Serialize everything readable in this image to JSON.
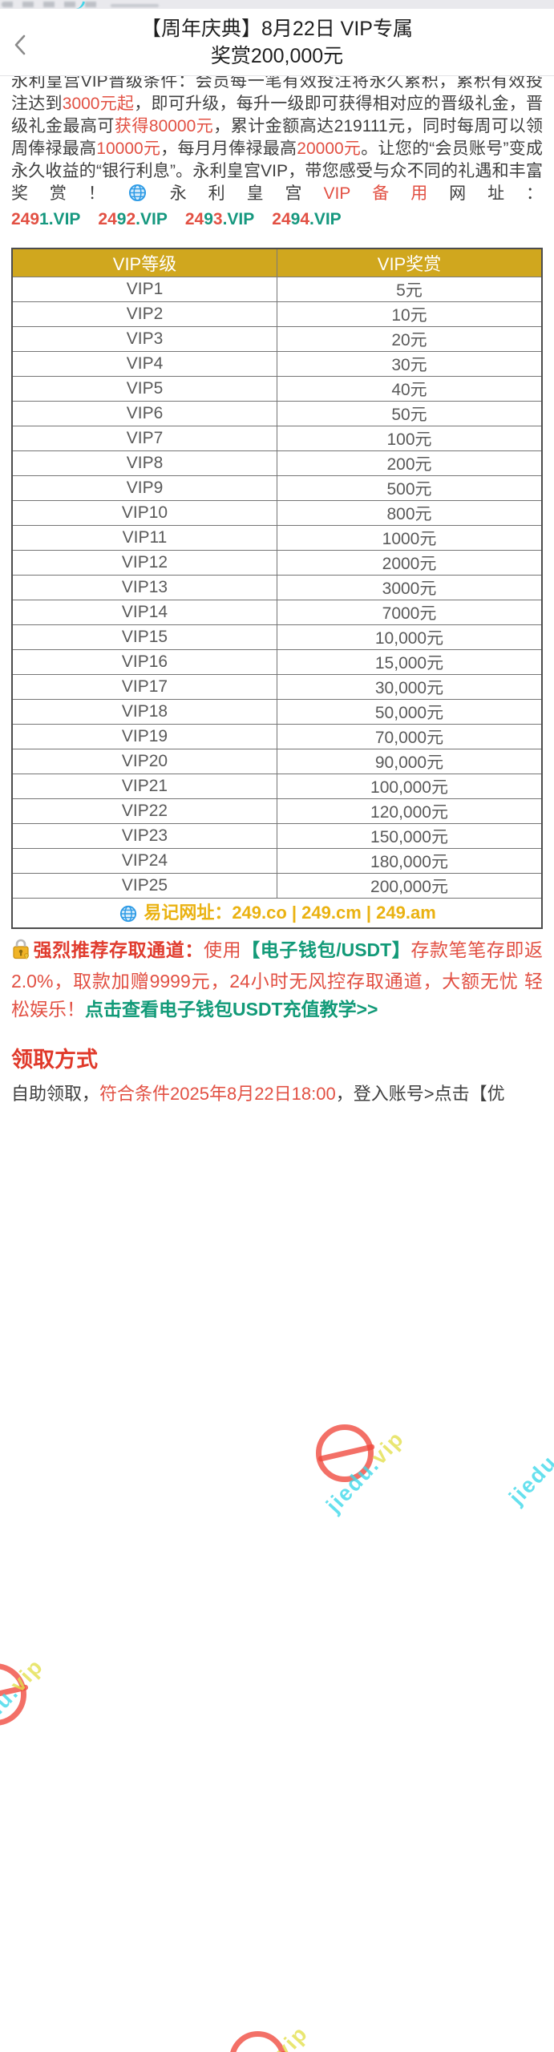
{
  "header": {
    "title_line1": "【周年庆典】8月22日 VIP专属",
    "title_line2": "奖赏200,000元"
  },
  "intro": {
    "segments": [
      {
        "t": "永利皇宫VIP晋级条件：会员每一笔有效投注将永久累积，累积有效投注达到",
        "c": "dark"
      },
      {
        "t": "3000元起",
        "c": "red"
      },
      {
        "t": "，即可升级，每升一级即可获得相对应的晋级礼金，晋级礼金最高可",
        "c": "dark"
      },
      {
        "t": "获得80000元",
        "c": "red"
      },
      {
        "t": "，累计金额高达219111元，同时每周可以领周俸禄最高",
        "c": "dark"
      },
      {
        "t": "10000元",
        "c": "red"
      },
      {
        "t": "，每月月俸禄最高",
        "c": "dark"
      },
      {
        "t": "20000元",
        "c": "red"
      },
      {
        "t": "。让您的“会员账号”变成永久收益的“银行利息”。永利皇宫VIP，带您感受与众不同的礼遇和丰富奖赏！",
        "c": "dark"
      }
    ],
    "backup_label_segments": [
      {
        "t": "永利皇宫",
        "c": "dark"
      },
      {
        "t": "VIP备用",
        "c": "red"
      },
      {
        "t": "网址：",
        "c": "dark"
      }
    ],
    "backup_urls": [
      {
        "label": "2491.VIP",
        "segments": [
          {
            "t": "249",
            "c": "red"
          },
          {
            "t": "1.VIP",
            "c": "teal"
          }
        ]
      },
      {
        "label": "2492.VIP",
        "segments": [
          {
            "t": "24",
            "c": "red"
          },
          {
            "t": "9",
            "c": "teal"
          },
          {
            "t": "2",
            "c": "red"
          },
          {
            "t": ".VIP",
            "c": "teal"
          }
        ]
      },
      {
        "label": "2493.VIP",
        "segments": [
          {
            "t": "24",
            "c": "red"
          },
          {
            "t": "9",
            "c": "teal"
          },
          {
            "t": "3",
            "c": "red"
          },
          {
            "t": ".VIP",
            "c": "teal"
          }
        ]
      },
      {
        "label": "2494.VIP",
        "segments": [
          {
            "t": "24",
            "c": "red"
          },
          {
            "t": "9",
            "c": "teal"
          },
          {
            "t": "4",
            "c": "red"
          },
          {
            "t": ".VIP",
            "c": "teal"
          }
        ]
      }
    ]
  },
  "table": {
    "columns": [
      "VIP等级",
      "VIP奖赏"
    ],
    "rows": [
      {
        "level": "VIP1",
        "reward": "5元"
      },
      {
        "level": "VIP2",
        "reward": "10元"
      },
      {
        "level": "VIP3",
        "reward": "20元"
      },
      {
        "level": "VIP4",
        "reward": "30元"
      },
      {
        "level": "VIP5",
        "reward": "40元"
      },
      {
        "level": "VIP6",
        "reward": "50元"
      },
      {
        "level": "VIP7",
        "reward": "100元"
      },
      {
        "level": "VIP8",
        "reward": "200元"
      },
      {
        "level": "VIP9",
        "reward": "500元"
      },
      {
        "level": "VIP10",
        "reward": "800元"
      },
      {
        "level": "VIP11",
        "reward": "1000元"
      },
      {
        "level": "VIP12",
        "reward": "2000元"
      },
      {
        "level": "VIP13",
        "reward": "3000元"
      },
      {
        "level": "VIP14",
        "reward": "7000元"
      },
      {
        "level": "VIP15",
        "reward": "10,000元"
      },
      {
        "level": "VIP16",
        "reward": "15,000元"
      },
      {
        "level": "VIP17",
        "reward": "30,000元"
      },
      {
        "level": "VIP18",
        "reward": "50,000元"
      },
      {
        "level": "VIP19",
        "reward": "70,000元"
      },
      {
        "level": "VIP20",
        "reward": "90,000元"
      },
      {
        "level": "VIP21",
        "reward": "100,000元"
      },
      {
        "level": "VIP22",
        "reward": "120,000元"
      },
      {
        "level": "VIP23",
        "reward": "150,000元"
      },
      {
        "level": "VIP24",
        "reward": "180,000元"
      },
      {
        "level": "VIP25",
        "reward": "200,000元"
      }
    ],
    "footer_text": "易记网址：249.co | 249.cm | 249.am"
  },
  "promo": {
    "segments": [
      {
        "t": "强烈推荐存取通道：",
        "c": "redb"
      },
      {
        "t": "使用",
        "c": "red"
      },
      {
        "t": "【电子钱包/USDT】",
        "c": "greenb"
      },
      {
        "t": "存款笔笔存即返2.0%，取款加赠9999元，24小时无风控存取通道，大额无忧 轻松娱乐！",
        "c": "red"
      }
    ],
    "link_label": "点击查看电子钱包USDT充值教学>>"
  },
  "claim": {
    "heading": "领取方式",
    "segments": [
      {
        "t": "自助领取，",
        "c": "dark"
      },
      {
        "t": "符合条件2025年8月22日18:00",
        "c": "red"
      },
      {
        "t": "，登入账号>点击【优",
        "c": "dark"
      }
    ]
  },
  "watermark": {
    "part1": "jiedu.",
    "part2": "vip",
    "cyan": "#3fd9ea",
    "yellow": "#e4e04e",
    "stamp_red": "#f0483c"
  },
  "colors": {
    "table_header_bg": "#d0a71e",
    "gold_text": "#eab211",
    "red_text": "#e25043",
    "teal_text": "#16987f",
    "green_link": "#129a78"
  }
}
